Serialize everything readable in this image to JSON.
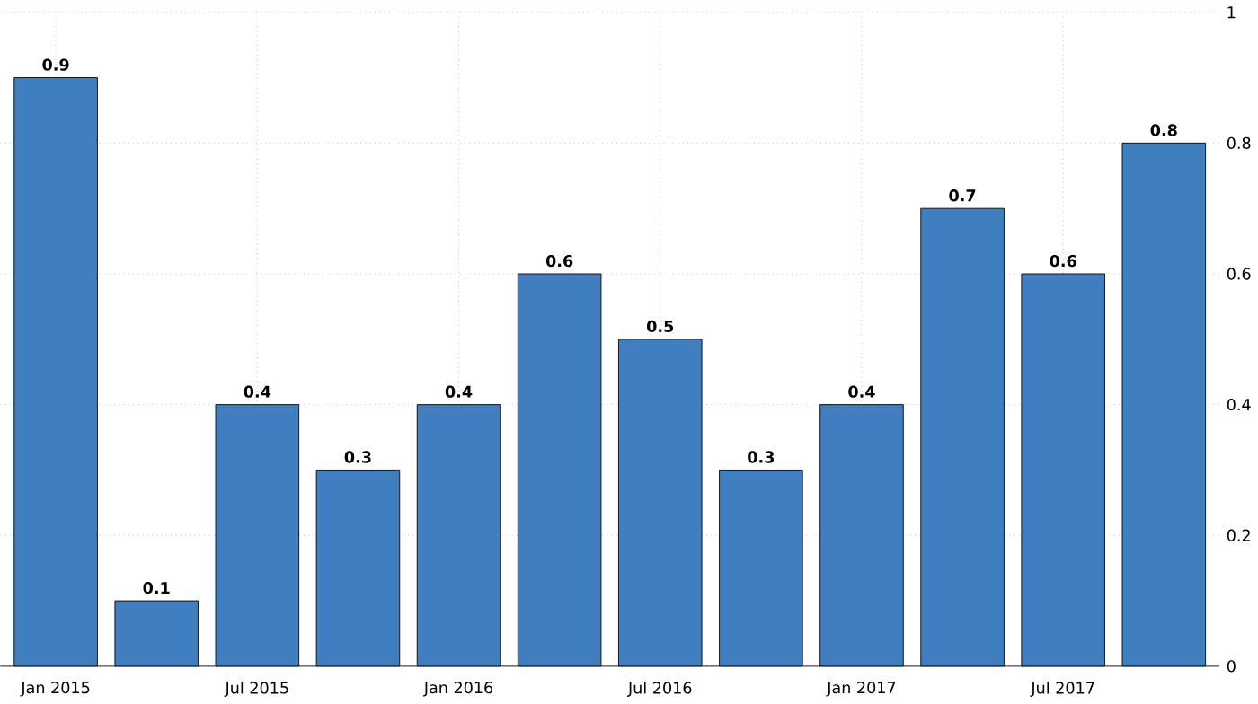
{
  "chart_data": {
    "type": "bar",
    "categories": [
      "Jan 2015",
      null,
      "Jul 2015",
      null,
      "Jan 2016",
      null,
      "Jul 2016",
      null,
      "Jan 2017",
      null,
      "Jul 2017",
      null
    ],
    "values": [
      0.9,
      0.1,
      0.4,
      0.3,
      0.4,
      0.6,
      0.5,
      0.3,
      0.4,
      0.7,
      0.6,
      0.8
    ],
    "color": "#3f7fbf",
    "ylim": [
      0,
      1
    ],
    "yticks": [
      0,
      0.2,
      0.4,
      0.6,
      0.8,
      1
    ],
    "grid": true,
    "data_labels": true
  }
}
